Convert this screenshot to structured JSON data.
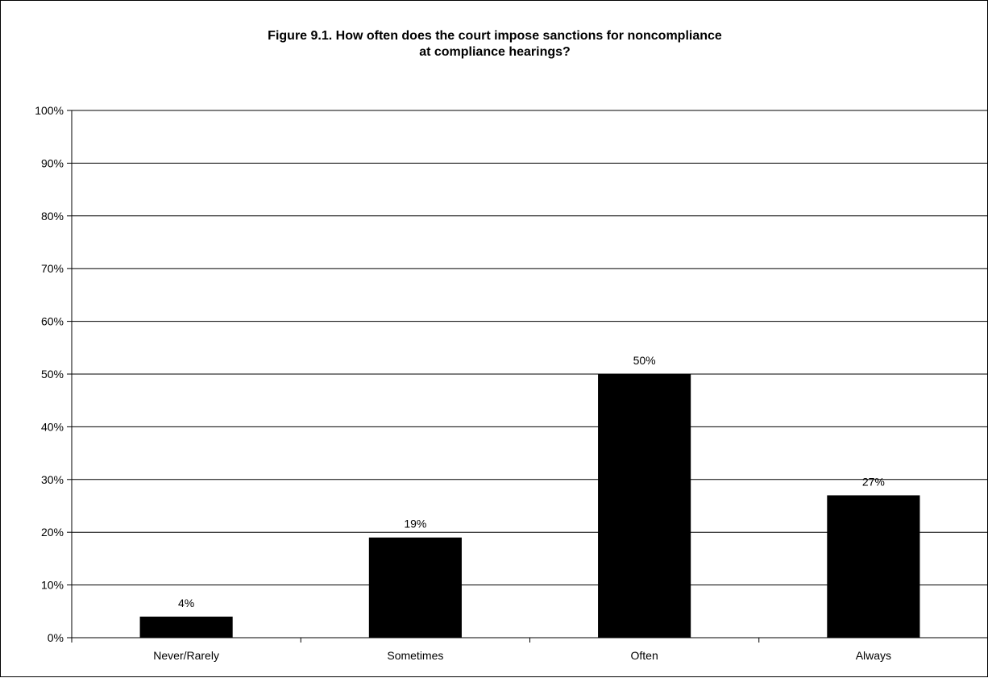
{
  "chart_data": {
    "type": "bar",
    "title_lines": [
      "Figure 9.1. How often does the court impose sanctions for noncompliance",
      "at compliance hearings?"
    ],
    "categories": [
      "Never/Rarely",
      "Sometimes",
      "Often",
      "Always"
    ],
    "values": [
      4,
      19,
      50,
      27
    ],
    "data_labels": [
      "4%",
      "19%",
      "50%",
      "27%"
    ],
    "yticks": [
      "0%",
      "10%",
      "20%",
      "30%",
      "40%",
      "50%",
      "60%",
      "70%",
      "80%",
      "90%",
      "100%"
    ],
    "ylim": [
      0,
      100
    ],
    "xlabel": "",
    "ylabel": "",
    "grid": true,
    "legend": "none",
    "bar_color": "#000000",
    "grid_color": "#000000"
  }
}
